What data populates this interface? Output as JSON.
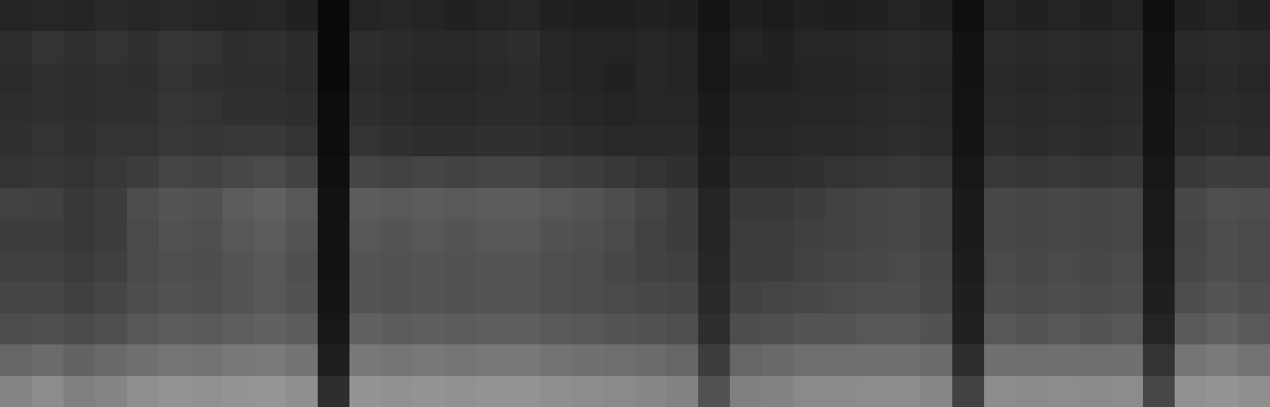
{
  "chart_data": {
    "type": "heatmap",
    "tick_labels": false,
    "zlim": [
      0,
      100
    ],
    "cells": [
      [
        14,
        15,
        14,
        16,
        15,
        16,
        15,
        14,
        15,
        13,
        4,
        14,
        15,
        14,
        13,
        14,
        15,
        13,
        12,
        12,
        13,
        12,
        8,
        12,
        11,
        13,
        12,
        13,
        14,
        13,
        6,
        14,
        13,
        14,
        13,
        14,
        6,
        13,
        14,
        13
      ],
      [
        18,
        20,
        19,
        20,
        19,
        21,
        20,
        18,
        19,
        17,
        4,
        18,
        17,
        16,
        16,
        17,
        18,
        15,
        14,
        14,
        15,
        14,
        9,
        14,
        13,
        15,
        15,
        16,
        17,
        16,
        7,
        17,
        16,
        17,
        16,
        17,
        7,
        16,
        17,
        16
      ],
      [
        17,
        19,
        18,
        19,
        18,
        20,
        19,
        18,
        18,
        17,
        4,
        17,
        16,
        15,
        15,
        16,
        17,
        15,
        14,
        13,
        15,
        14,
        9,
        13,
        13,
        14,
        14,
        15,
        16,
        15,
        7,
        16,
        15,
        16,
        15,
        16,
        7,
        15,
        16,
        15
      ],
      [
        18,
        19,
        18,
        19,
        19,
        21,
        20,
        19,
        19,
        18,
        5,
        18,
        17,
        16,
        16,
        17,
        17,
        16,
        15,
        14,
        15,
        15,
        10,
        14,
        14,
        15,
        15,
        16,
        17,
        16,
        8,
        17,
        16,
        17,
        16,
        17,
        8,
        16,
        17,
        16
      ],
      [
        19,
        20,
        19,
        20,
        20,
        22,
        21,
        22,
        22,
        20,
        5,
        20,
        19,
        18,
        18,
        19,
        19,
        18,
        17,
        16,
        16,
        16,
        11,
        15,
        15,
        16,
        16,
        17,
        18,
        17,
        8,
        18,
        17,
        18,
        17,
        18,
        8,
        17,
        18,
        17
      ],
      [
        20,
        21,
        20,
        22,
        24,
        27,
        26,
        28,
        29,
        26,
        6,
        27,
        26,
        27,
        26,
        27,
        27,
        25,
        24,
        22,
        20,
        19,
        12,
        18,
        18,
        19,
        20,
        21,
        22,
        21,
        9,
        22,
        21,
        22,
        21,
        22,
        9,
        22,
        24,
        23
      ],
      [
        26,
        25,
        22,
        24,
        30,
        33,
        32,
        36,
        38,
        34,
        7,
        36,
        35,
        36,
        35,
        36,
        36,
        34,
        33,
        30,
        27,
        24,
        14,
        22,
        22,
        24,
        26,
        27,
        28,
        26,
        10,
        28,
        27,
        28,
        27,
        28,
        10,
        28,
        31,
        30
      ],
      [
        24,
        24,
        22,
        24,
        29,
        32,
        31,
        34,
        36,
        33,
        7,
        34,
        33,
        34,
        33,
        34,
        34,
        32,
        31,
        29,
        26,
        24,
        14,
        23,
        23,
        25,
        26,
        27,
        28,
        26,
        10,
        28,
        27,
        28,
        27,
        28,
        10,
        27,
        30,
        29
      ],
      [
        25,
        25,
        23,
        25,
        29,
        31,
        30,
        33,
        34,
        31,
        7,
        33,
        32,
        33,
        32,
        33,
        33,
        31,
        30,
        28,
        26,
        25,
        15,
        24,
        24,
        26,
        27,
        28,
        29,
        27,
        11,
        29,
        28,
        29,
        28,
        29,
        11,
        28,
        30,
        29
      ],
      [
        27,
        27,
        25,
        27,
        30,
        32,
        31,
        33,
        34,
        32,
        8,
        33,
        32,
        33,
        32,
        33,
        33,
        31,
        30,
        29,
        28,
        27,
        16,
        26,
        27,
        28,
        29,
        30,
        30,
        28,
        12,
        30,
        29,
        30,
        29,
        30,
        12,
        30,
        33,
        31
      ],
      [
        30,
        31,
        29,
        31,
        34,
        36,
        35,
        37,
        38,
        36,
        9,
        38,
        36,
        37,
        36,
        37,
        37,
        35,
        34,
        33,
        32,
        31,
        18,
        30,
        31,
        33,
        33,
        34,
        34,
        32,
        13,
        34,
        33,
        34,
        33,
        34,
        14,
        35,
        38,
        35
      ],
      [
        40,
        42,
        39,
        41,
        44,
        46,
        45,
        47,
        48,
        45,
        12,
        47,
        46,
        47,
        46,
        47,
        47,
        45,
        44,
        43,
        42,
        40,
        24,
        40,
        41,
        43,
        43,
        44,
        44,
        42,
        18,
        44,
        43,
        44,
        43,
        44,
        20,
        46,
        48,
        45
      ],
      [
        52,
        55,
        50,
        52,
        56,
        58,
        57,
        58,
        59,
        56,
        18,
        58,
        57,
        58,
        57,
        58,
        58,
        56,
        55,
        54,
        53,
        51,
        32,
        50,
        51,
        54,
        54,
        55,
        55,
        53,
        26,
        55,
        54,
        55,
        54,
        55,
        28,
        57,
        58,
        56
      ]
    ]
  }
}
